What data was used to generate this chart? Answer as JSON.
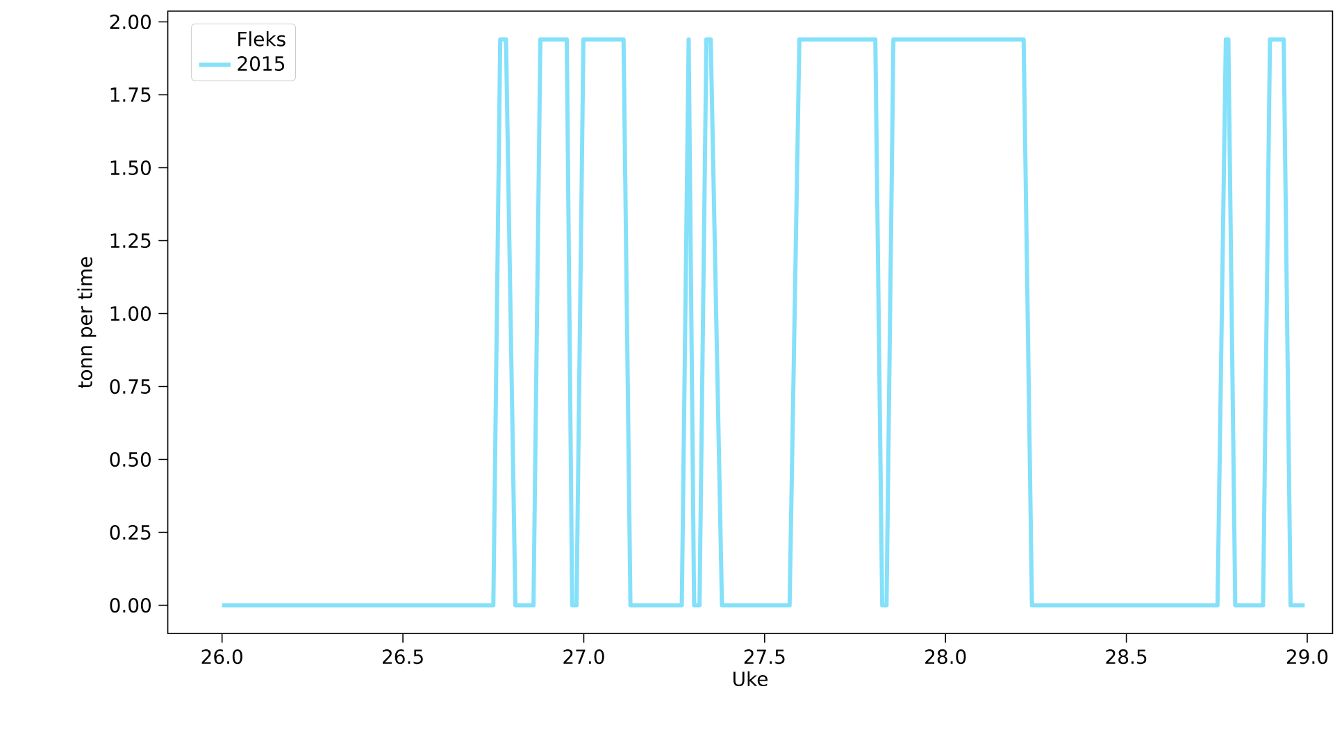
{
  "chart_data": {
    "type": "line",
    "xlabel": "Uke",
    "ylabel": "tonn per time",
    "legend_title": "Fleks",
    "legend": "top left",
    "grid": false,
    "marker": "none",
    "line_style": "solid",
    "xlim": [
      25.85,
      29.07
    ],
    "ylim": [
      -0.097,
      2.037
    ],
    "xticks": [
      {
        "value": 26.0,
        "label": "26.0"
      },
      {
        "value": 26.5,
        "label": "26.5"
      },
      {
        "value": 27.0,
        "label": "27.0"
      },
      {
        "value": 27.5,
        "label": "27.5"
      },
      {
        "value": 28.0,
        "label": "28.0"
      },
      {
        "value": 28.5,
        "label": "28.5"
      },
      {
        "value": 29.0,
        "label": "29.0"
      }
    ],
    "yticks": [
      {
        "value": 0,
        "label": "0.00"
      },
      {
        "value": 0.25,
        "label": "0.25"
      },
      {
        "value": 0.5,
        "label": "0.50"
      },
      {
        "value": 0.75,
        "label": "0.75"
      },
      {
        "value": 1.0,
        "label": "1.00"
      },
      {
        "value": 1.25,
        "label": "1.25"
      },
      {
        "value": 1.5,
        "label": "1.50"
      },
      {
        "value": 1.75,
        "label": "1.75"
      },
      {
        "value": 2.0,
        "label": "2.00"
      }
    ],
    "x": [
      26.0,
      26.75,
      26.769,
      26.785,
      26.811,
      26.861,
      26.88,
      26.953,
      26.968,
      26.98,
      26.999,
      27.11,
      27.129,
      27.271,
      27.29,
      27.305,
      27.32,
      27.339,
      27.351,
      27.382,
      27.569,
      27.596,
      27.806,
      27.825,
      27.837,
      27.856,
      28.216,
      28.239,
      28.752,
      28.775,
      28.782,
      28.801,
      28.878,
      28.897,
      28.935,
      28.954,
      28.993
    ],
    "series": [
      {
        "name": "2015",
        "color": "#85e0fa",
        "values": [
          0,
          0,
          1.94,
          1.94,
          0,
          0,
          1.94,
          1.94,
          0,
          0,
          1.94,
          1.94,
          0,
          0,
          1.94,
          0,
          0,
          1.94,
          1.94,
          0,
          0,
          1.94,
          1.94,
          0,
          0,
          1.94,
          1.94,
          0,
          0,
          1.94,
          1.94,
          0,
          0,
          1.94,
          1.94,
          0,
          0
        ]
      }
    ]
  }
}
